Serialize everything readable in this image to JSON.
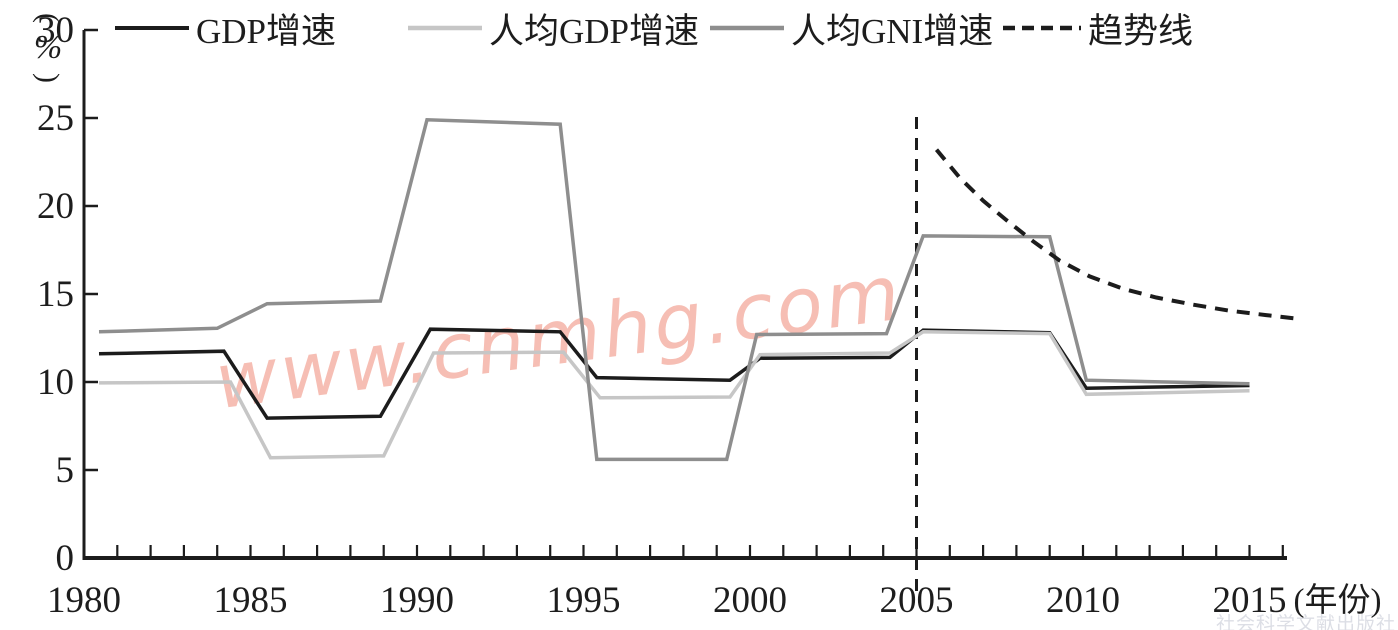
{
  "figure": {
    "y_unit_open": "(",
    "y_unit_symbol": "%",
    "y_unit_close": ")",
    "x_axis_unit": "(年份)",
    "watermark": "www.cnmhg.com",
    "publisher_watermark": "社会科学文献出版社"
  },
  "chart_data": {
    "type": "line",
    "title": "",
    "xlabel": "年份",
    "ylabel": "%",
    "grid": false,
    "legend_position": "top",
    "ylim": [
      0,
      30
    ],
    "xlim": [
      1980,
      2016.2
    ],
    "y_ticks": [
      0,
      5,
      10,
      15,
      20,
      25,
      30
    ],
    "x_tick_labels": [
      "1980",
      "1985",
      "1990",
      "1995",
      "2000",
      "2005",
      "2010",
      "2015"
    ],
    "x_tick_label_years": [
      1980,
      1985,
      1990,
      1995,
      2000,
      2005,
      2010,
      2015
    ],
    "minor_x_tick_every_year": true,
    "reference_vline": {
      "x": 2005,
      "style": "dashed",
      "color": "#1c1c1c"
    },
    "series": [
      {
        "name": "GDP增速",
        "color": "#1c1c1c",
        "width": 3.5,
        "dash": null,
        "points": [
          [
            1980.45,
            11.6
          ],
          [
            1984.2,
            11.75
          ],
          [
            1985.5,
            7.95
          ],
          [
            1988.9,
            8.05
          ],
          [
            1990.4,
            13.0
          ],
          [
            1994.3,
            12.85
          ],
          [
            1995.4,
            10.25
          ],
          [
            1999.4,
            10.1
          ],
          [
            2000.3,
            11.35
          ],
          [
            2004.2,
            11.4
          ],
          [
            2005.2,
            12.95
          ],
          [
            2009.0,
            12.8
          ],
          [
            2010.1,
            9.65
          ],
          [
            2015.0,
            9.8
          ]
        ]
      },
      {
        "name": "人均GDP增速",
        "color": "#c6c6c6",
        "width": 3.5,
        "dash": null,
        "points": [
          [
            1980.45,
            9.95
          ],
          [
            1984.4,
            10.0
          ],
          [
            1985.6,
            5.7
          ],
          [
            1989.0,
            5.8
          ],
          [
            1990.5,
            11.65
          ],
          [
            1994.4,
            11.7
          ],
          [
            1995.5,
            9.1
          ],
          [
            1999.4,
            9.15
          ],
          [
            2000.3,
            11.55
          ],
          [
            2004.2,
            11.65
          ],
          [
            2005.2,
            12.85
          ],
          [
            2009.0,
            12.75
          ],
          [
            2010.1,
            9.3
          ],
          [
            2015.0,
            9.5
          ]
        ]
      },
      {
        "name": "人均GNI增速",
        "color": "#8e8e8e",
        "width": 3.5,
        "dash": null,
        "points": [
          [
            1980.45,
            12.85
          ],
          [
            1984.0,
            13.05
          ],
          [
            1985.5,
            14.45
          ],
          [
            1988.9,
            14.6
          ],
          [
            1990.3,
            24.9
          ],
          [
            1994.3,
            24.65
          ],
          [
            1995.4,
            5.6
          ],
          [
            1999.3,
            5.6
          ],
          [
            2000.2,
            12.7
          ],
          [
            2004.1,
            12.75
          ],
          [
            2005.2,
            18.3
          ],
          [
            2009.0,
            18.25
          ],
          [
            2010.1,
            10.1
          ],
          [
            2015.0,
            9.9
          ]
        ]
      },
      {
        "name": "趋势线",
        "color": "#1c1c1c",
        "width": 4,
        "dash": [
          13,
          9
        ],
        "points": [
          [
            2005.6,
            23.2
          ],
          [
            2006.3,
            21.6
          ],
          [
            2007.0,
            20.3
          ],
          [
            2007.7,
            19.2
          ],
          [
            2008.5,
            18.0
          ],
          [
            2009.3,
            16.9
          ],
          [
            2010.2,
            16.0
          ],
          [
            2011.2,
            15.3
          ],
          [
            2012.2,
            14.8
          ],
          [
            2013.3,
            14.4
          ],
          [
            2014.4,
            14.05
          ],
          [
            2015.5,
            13.8
          ],
          [
            2016.4,
            13.6
          ]
        ]
      }
    ]
  }
}
